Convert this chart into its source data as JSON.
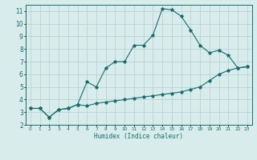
{
  "title": "",
  "xlabel": "Humidex (Indice chaleur)",
  "ylabel": "",
  "xlim": [
    -0.5,
    23.5
  ],
  "ylim": [
    2,
    11.5
  ],
  "background_color": "#d8ecec",
  "grid_color": "#b8d4d4",
  "line_color": "#1a6b6b",
  "x_ticks": [
    0,
    1,
    2,
    3,
    4,
    5,
    6,
    7,
    8,
    9,
    10,
    11,
    12,
    13,
    14,
    15,
    16,
    17,
    18,
    19,
    20,
    21,
    22,
    23
  ],
  "y_ticks": [
    2,
    3,
    4,
    5,
    6,
    7,
    8,
    9,
    10,
    11
  ],
  "curve1_x": [
    0,
    1,
    2,
    3,
    4,
    5,
    6,
    7,
    8,
    9,
    10,
    11,
    12,
    13,
    14,
    15,
    16,
    17,
    18,
    19,
    20,
    21,
    22,
    23
  ],
  "curve1_y": [
    3.3,
    3.3,
    2.6,
    3.2,
    3.3,
    3.6,
    3.5,
    3.7,
    3.8,
    3.9,
    4.0,
    4.1,
    4.2,
    4.3,
    4.4,
    4.5,
    4.6,
    4.8,
    5.0,
    5.5,
    6.0,
    6.3,
    6.5,
    6.6
  ],
  "curve2_x": [
    0,
    1,
    2,
    3,
    4,
    5,
    6,
    7,
    8,
    9,
    10,
    11,
    12,
    13,
    14,
    15,
    16,
    17,
    18,
    19,
    20,
    21,
    22,
    23
  ],
  "curve2_y": [
    3.3,
    3.3,
    2.6,
    3.2,
    3.3,
    3.6,
    5.4,
    5.0,
    6.5,
    7.0,
    7.0,
    8.3,
    8.3,
    9.1,
    11.2,
    11.1,
    10.6,
    9.5,
    8.3,
    7.7,
    7.9,
    7.5,
    6.5,
    6.6
  ],
  "xlabel_fontsize": 5.5,
  "tick_fontsize_x": 4.2,
  "tick_fontsize_y": 5.5,
  "marker_size": 2.8,
  "line_width": 0.8
}
